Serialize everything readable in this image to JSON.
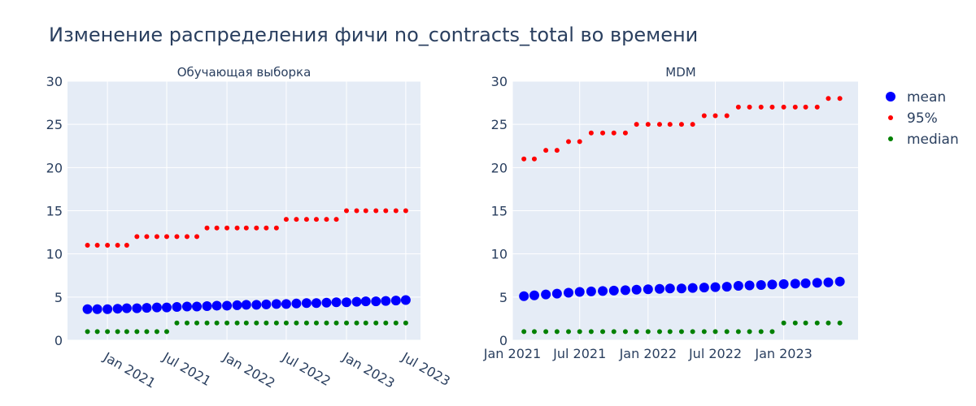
{
  "title": "Изменение распределения фичи no_contracts_total во времени",
  "legend": [
    {
      "name": "mean",
      "color": "#0000ff"
    },
    {
      "name": "95%",
      "color": "#ff0000"
    },
    {
      "name": "median",
      "color": "#008000"
    }
  ],
  "chart_data": [
    {
      "type": "scatter",
      "title": "Обучающая выборка",
      "ylim": [
        0,
        30
      ],
      "yticks": [
        0,
        5,
        10,
        15,
        20,
        25,
        30
      ],
      "xlim": [
        "2020-09-01",
        "2023-08-15"
      ],
      "xticks": [
        {
          "date": "2021-01-01",
          "label": "Jan 2021"
        },
        {
          "date": "2021-07-01",
          "label": "Jul 2021"
        },
        {
          "date": "2022-01-01",
          "label": "Jan 2022"
        },
        {
          "date": "2022-07-01",
          "label": "Jul 2022"
        },
        {
          "date": "2023-01-01",
          "label": "Jan 2023"
        },
        {
          "date": "2023-07-01",
          "label": "Jul 2023"
        }
      ],
      "x": [
        "2020-11",
        "2020-12",
        "2021-01",
        "2021-02",
        "2021-03",
        "2021-04",
        "2021-05",
        "2021-06",
        "2021-07",
        "2021-08",
        "2021-09",
        "2021-10",
        "2021-11",
        "2021-12",
        "2022-01",
        "2022-02",
        "2022-03",
        "2022-04",
        "2022-05",
        "2022-06",
        "2022-07",
        "2022-08",
        "2022-09",
        "2022-10",
        "2022-11",
        "2022-12",
        "2023-01",
        "2023-02",
        "2023-03",
        "2023-04",
        "2023-05",
        "2023-06",
        "2023-07"
      ],
      "series": [
        {
          "name": "mean",
          "values": [
            3.6,
            3.6,
            3.6,
            3.65,
            3.7,
            3.7,
            3.75,
            3.8,
            3.8,
            3.85,
            3.9,
            3.9,
            3.95,
            4.0,
            4.0,
            4.05,
            4.1,
            4.1,
            4.15,
            4.2,
            4.2,
            4.25,
            4.3,
            4.3,
            4.35,
            4.4,
            4.4,
            4.45,
            4.5,
            4.5,
            4.55,
            4.6,
            4.65
          ]
        },
        {
          "name": "95%",
          "values": [
            11,
            11,
            11,
            11,
            11,
            12,
            12,
            12,
            12,
            12,
            12,
            12,
            13,
            13,
            13,
            13,
            13,
            13,
            13,
            13,
            14,
            14,
            14,
            14,
            14,
            14,
            15,
            15,
            15,
            15,
            15,
            15,
            15
          ]
        },
        {
          "name": "median",
          "values": [
            1,
            1,
            1,
            1,
            1,
            1,
            1,
            1,
            1,
            2,
            2,
            2,
            2,
            2,
            2,
            2,
            2,
            2,
            2,
            2,
            2,
            2,
            2,
            2,
            2,
            2,
            2,
            2,
            2,
            2,
            2,
            2,
            2
          ]
        }
      ]
    },
    {
      "type": "scatter",
      "title": "MDM",
      "ylim": [
        0,
        30
      ],
      "yticks": [
        0,
        5,
        10,
        15,
        20,
        25,
        30
      ],
      "xlim": [
        "2021-01-01",
        "2023-07-20"
      ],
      "xticks": [
        {
          "date": "2021-01-01",
          "label": "Jan 2021"
        },
        {
          "date": "2021-07-01",
          "label": "Jul 2021"
        },
        {
          "date": "2022-01-01",
          "label": "Jan 2022"
        },
        {
          "date": "2022-07-01",
          "label": "Jul 2022"
        },
        {
          "date": "2023-01-01",
          "label": "Jan 2023"
        }
      ],
      "x": [
        "2021-02",
        "2021-03",
        "2021-04",
        "2021-05",
        "2021-06",
        "2021-07",
        "2021-08",
        "2021-09",
        "2021-10",
        "2021-11",
        "2021-12",
        "2022-01",
        "2022-02",
        "2022-03",
        "2022-04",
        "2022-05",
        "2022-06",
        "2022-07",
        "2022-08",
        "2022-09",
        "2022-10",
        "2022-11",
        "2022-12",
        "2023-01",
        "2023-02",
        "2023-03",
        "2023-04",
        "2023-05",
        "2023-06"
      ],
      "series": [
        {
          "name": "mean",
          "values": [
            5.1,
            5.2,
            5.3,
            5.4,
            5.5,
            5.6,
            5.65,
            5.7,
            5.75,
            5.8,
            5.85,
            5.9,
            5.95,
            6.0,
            6.0,
            6.05,
            6.1,
            6.15,
            6.2,
            6.3,
            6.35,
            6.4,
            6.45,
            6.5,
            6.55,
            6.6,
            6.65,
            6.7,
            6.8
          ]
        },
        {
          "name": "95%",
          "values": [
            21,
            21,
            22,
            22,
            23,
            23,
            24,
            24,
            24,
            24,
            25,
            25,
            25,
            25,
            25,
            25,
            26,
            26,
            26,
            27,
            27,
            27,
            27,
            27,
            27,
            27,
            27,
            28,
            28
          ]
        },
        {
          "name": "median",
          "values": [
            1,
            1,
            1,
            1,
            1,
            1,
            1,
            1,
            1,
            1,
            1,
            1,
            1,
            1,
            1,
            1,
            1,
            1,
            1,
            1,
            1,
            1,
            1,
            2,
            2,
            2,
            2,
            2,
            2
          ]
        }
      ]
    }
  ]
}
